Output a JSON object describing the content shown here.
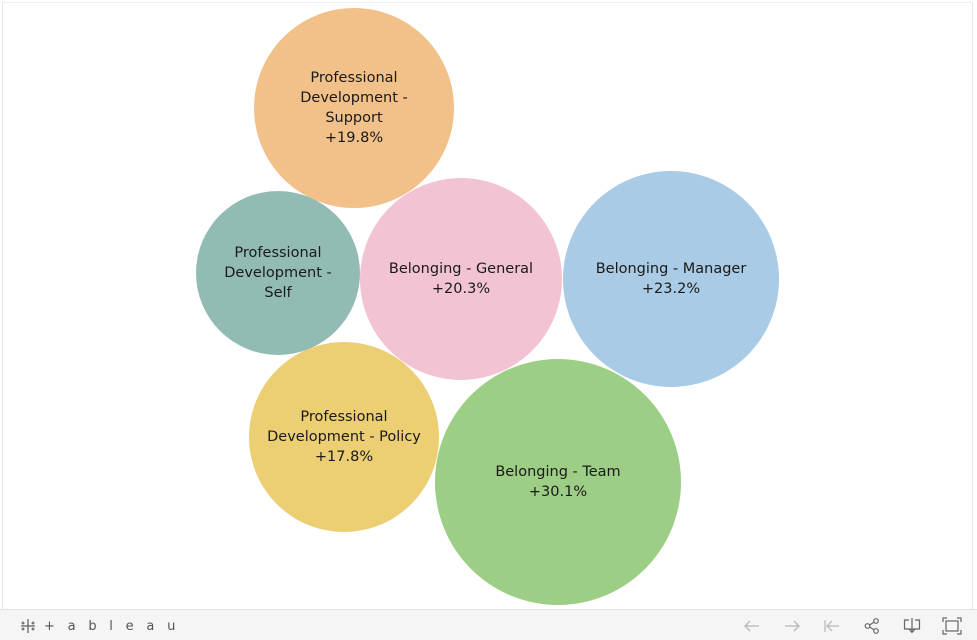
{
  "chart_data": {
    "type": "bubble",
    "title": "",
    "bubbles": [
      {
        "label_lines": [
          "Professional",
          "Development -",
          "Support"
        ],
        "value_label": "+19.8%",
        "value": 19.8,
        "color": "#F2C089"
      },
      {
        "label_lines": [
          "Professional",
          "Development -",
          "Self"
        ],
        "value_label": "",
        "value": null,
        "color": "#92BBB4"
      },
      {
        "label_lines": [
          "Belonging - General"
        ],
        "value_label": "+20.3%",
        "value": 20.3,
        "color": "#F2C3D3"
      },
      {
        "label_lines": [
          "Belonging - Manager"
        ],
        "value_label": "+23.2%",
        "value": 23.2,
        "color": "#A9CBE5"
      },
      {
        "label_lines": [
          "Professional",
          "Development - Policy"
        ],
        "value_label": "+17.8%",
        "value": 17.8,
        "color": "#ECCE73"
      },
      {
        "label_lines": [
          "Belonging - Team"
        ],
        "value_label": "+30.1%",
        "value": 30.1,
        "color": "#9DCE85"
      }
    ]
  },
  "footer": {
    "brand": "+ a b l e a u",
    "buttons": [
      {
        "name": "undo-button",
        "icon": "arrow-left-icon"
      },
      {
        "name": "redo-button",
        "icon": "arrow-right-icon"
      },
      {
        "name": "revert-button",
        "icon": "revert-icon"
      },
      {
        "name": "share-button",
        "icon": "share-icon"
      },
      {
        "name": "download-button",
        "icon": "download-icon"
      },
      {
        "name": "fullscreen-button",
        "icon": "fullscreen-icon"
      }
    ]
  }
}
